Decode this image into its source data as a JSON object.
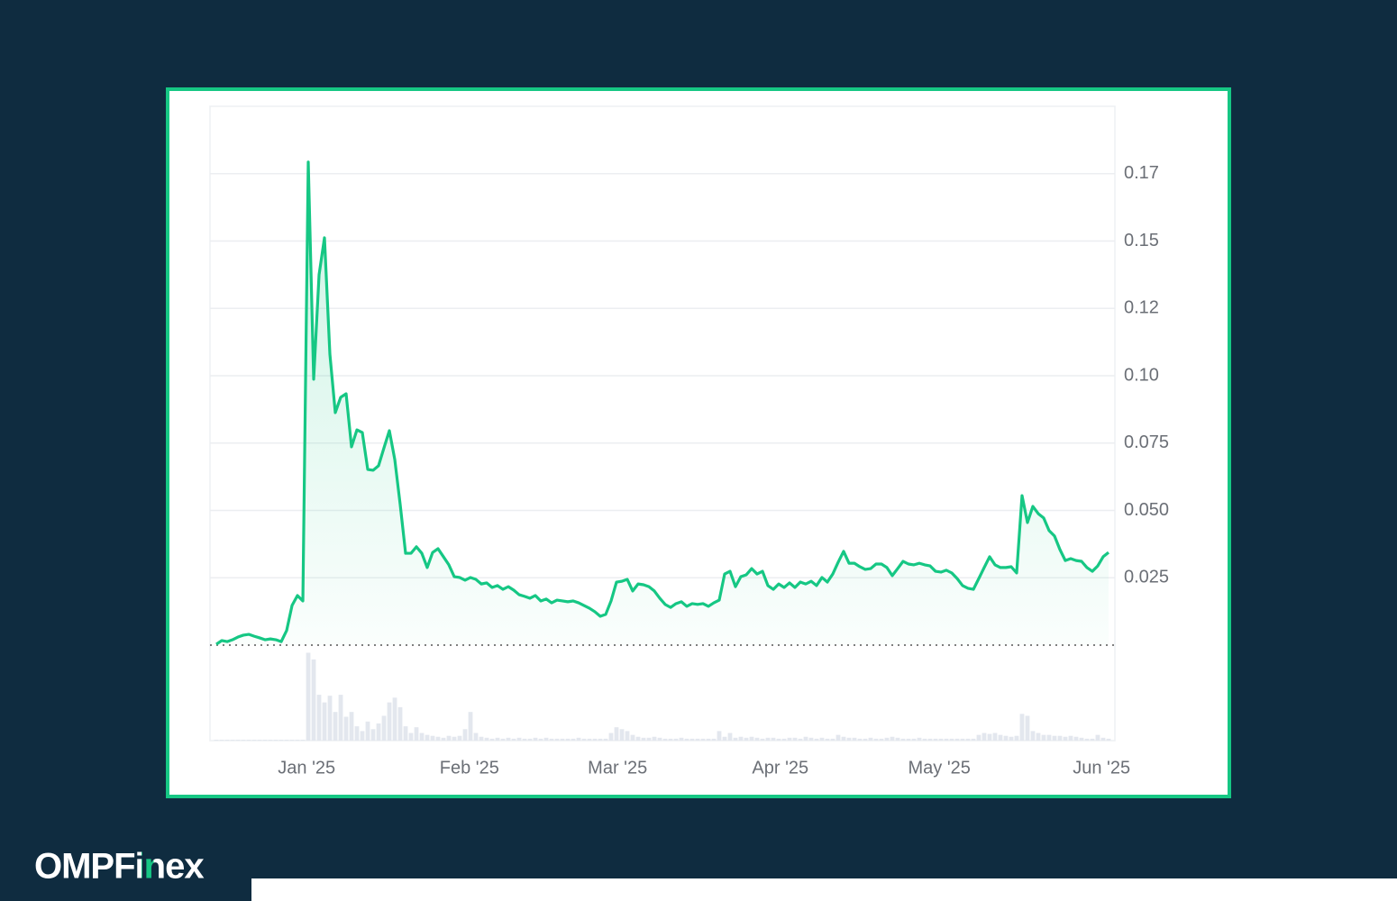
{
  "brand": "OMPFinex",
  "chart_data": {
    "type": "line",
    "x": [
      0,
      1,
      2,
      3,
      4,
      5,
      6,
      7,
      8,
      9,
      10,
      11,
      12,
      13,
      14,
      15,
      16,
      17,
      18,
      19,
      20,
      21,
      22,
      23,
      24,
      25,
      26,
      27,
      28,
      29,
      30,
      31,
      32,
      33,
      34,
      35,
      36,
      37,
      38,
      39,
      40,
      41,
      42,
      43,
      44,
      45,
      46,
      47,
      48,
      49,
      50,
      51,
      52,
      53,
      54,
      55,
      56,
      57,
      58,
      59,
      60,
      61,
      62,
      63,
      64,
      65,
      66,
      67,
      68,
      69,
      70,
      71,
      72,
      73,
      74,
      75,
      76,
      77,
      78,
      79,
      80,
      81,
      82,
      83,
      84,
      85,
      86,
      87,
      88,
      89,
      90,
      91,
      92,
      93,
      94,
      95,
      96,
      97,
      98,
      99,
      100,
      101,
      102,
      103,
      104,
      105,
      106,
      107,
      108,
      109,
      110,
      111,
      112,
      113,
      114,
      115,
      116,
      117,
      118,
      119,
      120,
      121,
      122,
      123,
      124,
      125,
      126,
      127,
      128,
      129,
      130,
      131,
      132,
      133,
      134,
      135,
      136,
      137,
      138,
      139,
      140,
      141,
      142,
      143,
      144,
      145,
      146,
      147,
      148,
      149,
      150,
      151,
      152,
      153,
      154,
      155,
      156,
      157,
      158,
      159,
      160,
      161,
      162,
      163,
      164,
      165
    ],
    "series": [
      {
        "color": "#16c784",
        "values": [
          0.0003,
          0.0017,
          0.0013,
          0.002,
          0.003,
          0.0037,
          0.004,
          0.0033,
          0.0027,
          0.002,
          0.0023,
          0.002,
          0.0013,
          0.0054,
          0.0147,
          0.0184,
          0.0164,
          0.1793,
          0.0987,
          0.1375,
          0.1512,
          0.108,
          0.0863,
          0.092,
          0.0933,
          0.0736,
          0.0799,
          0.0789,
          0.0652,
          0.0649,
          0.0666,
          0.0732,
          0.0796,
          0.0689,
          0.0522,
          0.0341,
          0.0341,
          0.0365,
          0.0341,
          0.0288,
          0.0344,
          0.0358,
          0.0328,
          0.0298,
          0.0254,
          0.0251,
          0.0241,
          0.0251,
          0.0244,
          0.0227,
          0.0231,
          0.0214,
          0.0221,
          0.0207,
          0.0217,
          0.0204,
          0.0187,
          0.0181,
          0.0174,
          0.0184,
          0.0164,
          0.0171,
          0.0157,
          0.0167,
          0.0164,
          0.0161,
          0.0164,
          0.0157,
          0.0147,
          0.0137,
          0.0124,
          0.0107,
          0.0114,
          0.0164,
          0.0234,
          0.0237,
          0.0244,
          0.0201,
          0.0227,
          0.0224,
          0.0217,
          0.0201,
          0.0174,
          0.0151,
          0.014,
          0.0154,
          0.0161,
          0.0144,
          0.0154,
          0.0151,
          0.0154,
          0.0144,
          0.0157,
          0.0167,
          0.0264,
          0.0274,
          0.0217,
          0.0254,
          0.0261,
          0.0284,
          0.0264,
          0.0274,
          0.0221,
          0.0207,
          0.0227,
          0.0214,
          0.0231,
          0.0214,
          0.0234,
          0.0227,
          0.0237,
          0.0221,
          0.0251,
          0.0234,
          0.0264,
          0.0308,
          0.0348,
          0.0304,
          0.0304,
          0.0291,
          0.0281,
          0.0284,
          0.0301,
          0.0301,
          0.0288,
          0.0258,
          0.0284,
          0.0311,
          0.0301,
          0.0298,
          0.0304,
          0.0298,
          0.0294,
          0.0274,
          0.0271,
          0.0278,
          0.0268,
          0.0247,
          0.0221,
          0.0211,
          0.0207,
          0.0247,
          0.0288,
          0.0328,
          0.0298,
          0.0288,
          0.0288,
          0.0291,
          0.0268,
          0.0555,
          0.0455,
          0.0515,
          0.0488,
          0.0472,
          0.0425,
          0.0405,
          0.0355,
          0.0314,
          0.0321,
          0.0314,
          0.0311,
          0.0288,
          0.0274,
          0.0294,
          0.0328,
          0.0344
        ]
      }
    ],
    "volume": {
      "color": "#e3e7ee",
      "ylim": [
        0,
        100
      ],
      "values": [
        1,
        1,
        1,
        1,
        1,
        1,
        1,
        1,
        1,
        1,
        1,
        1,
        1,
        1,
        1,
        1,
        1,
        92,
        85,
        48,
        40,
        47,
        30,
        48,
        25,
        30,
        15,
        10,
        20,
        12,
        18,
        26,
        40,
        45,
        35,
        15,
        8,
        14,
        8,
        6,
        5,
        4,
        3,
        5,
        4,
        5,
        12,
        30,
        8,
        4,
        3,
        2,
        3,
        2,
        3,
        2,
        3,
        2,
        2,
        3,
        2,
        3,
        2,
        2,
        2,
        2,
        2,
        3,
        2,
        2,
        2,
        2,
        2,
        8,
        14,
        12,
        10,
        6,
        4,
        3,
        3,
        4,
        3,
        2,
        2,
        2,
        3,
        2,
        2,
        2,
        2,
        2,
        2,
        10,
        4,
        8,
        3,
        4,
        3,
        4,
        3,
        2,
        3,
        3,
        2,
        2,
        3,
        3,
        2,
        4,
        3,
        2,
        3,
        2,
        2,
        6,
        4,
        3,
        3,
        2,
        2,
        3,
        2,
        2,
        3,
        4,
        3,
        2,
        2,
        2,
        3,
        2,
        2,
        2,
        2,
        2,
        2,
        2,
        2,
        2,
        2,
        6,
        8,
        7,
        8,
        6,
        5,
        4,
        5,
        28,
        26,
        10,
        8,
        6,
        6,
        5,
        5,
        4,
        5,
        4,
        3,
        2,
        2,
        6,
        3,
        2
      ]
    },
    "xlim": [
      -1.17,
      166.17
    ],
    "xticks": [
      {
        "value": 16.7,
        "label": "Jan '25"
      },
      {
        "value": 46.8,
        "label": "Feb '25"
      },
      {
        "value": 74.2,
        "label": "Mar '25"
      },
      {
        "value": 104.3,
        "label": "Apr '25"
      },
      {
        "value": 133.7,
        "label": "May '25"
      },
      {
        "value": 163.7,
        "label": "Jun '25"
      }
    ],
    "ylim": [
      0,
      0.2
    ],
    "yticks": [
      0.025,
      0.075,
      {
        "value": 0.05,
        "label": "0.050"
      },
      {
        "value": 0.1,
        "label": "0.10"
      },
      {
        "value": 0.125,
        "label": "0.12"
      },
      0.15,
      {
        "value": 0.175,
        "label": "0.17"
      }
    ],
    "grid": true
  }
}
